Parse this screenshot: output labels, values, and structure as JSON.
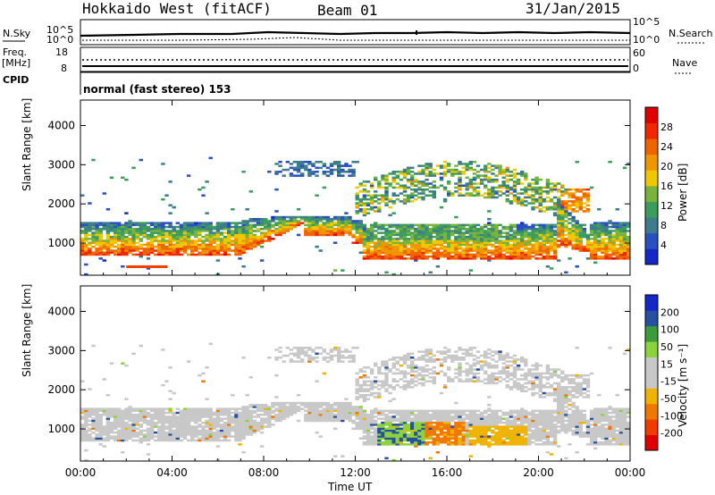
{
  "header": {
    "station": "Hokkaido West (fitACF)",
    "beam": "Beam 01",
    "date": "31/Jan/2015"
  },
  "strip": {
    "nsky_label": "N.Sky",
    "nsky_top": "10^5",
    "nsky_bottom": "10^0",
    "nsearch_label": "N.Search",
    "nsearch_top": "10^5",
    "nsearch_bottom": "10^0",
    "freq_label": "Freq.",
    "freq_unit": "[MHz]",
    "freq_top": "18",
    "freq_bottom": "8",
    "nave_label": "Nave",
    "nave_top": "60",
    "nave_bottom": "0",
    "cpid_label": "CPID",
    "cpid_value": "normal (fast stereo) 153"
  },
  "colors": {
    "power_scale": [
      "#1428c8",
      "#2850c0",
      "#3c7c8c",
      "#3c9c5c",
      "#78b43c",
      "#f0c800",
      "#f09600",
      "#f06400",
      "#f02800",
      "#e00000"
    ],
    "velocity_scale": [
      "#e00000",
      "#f03c00",
      "#f07800",
      "#f0b400",
      "#c8c8c8",
      "#c8c8c8",
      "#8cd23c",
      "#3c9c3c",
      "#2850a0",
      "#1428c8"
    ]
  },
  "chart_data": [
    {
      "type": "heatmap",
      "name": "power-panel",
      "ylabel": "Slant Range [km]",
      "ylim": [
        180,
        4650
      ],
      "yticks": [
        "1000",
        "2000",
        "3000",
        "4000"
      ],
      "xlim": [
        "00:00",
        "24:00"
      ],
      "xticks": [
        "00:00",
        "04:00",
        "08:00",
        "12:00",
        "16:00",
        "20:00",
        "00:00"
      ],
      "colorbar_label": "Power [dB]",
      "colorbar_ticks": [
        "4",
        "8",
        "12",
        "16",
        "20",
        "24",
        "28"
      ],
      "colorbar_range": [
        0,
        32
      ]
    },
    {
      "type": "heatmap",
      "name": "velocity-panel",
      "ylabel": "Slant Range [km]",
      "ylim": [
        180,
        4650
      ],
      "yticks": [
        "1000",
        "2000",
        "3000",
        "4000"
      ],
      "xlim": [
        "00:00",
        "24:00"
      ],
      "xticks": [
        "00:00",
        "04:00",
        "08:00",
        "12:00",
        "16:00",
        "20:00",
        "00:00"
      ],
      "xlabel": "Time UT",
      "colorbar_label": "Velocity [m s⁻¹]",
      "colorbar_ticks": [
        "200",
        "100",
        "50",
        "15",
        "-15",
        "-50",
        "-100",
        "-200"
      ]
    }
  ]
}
